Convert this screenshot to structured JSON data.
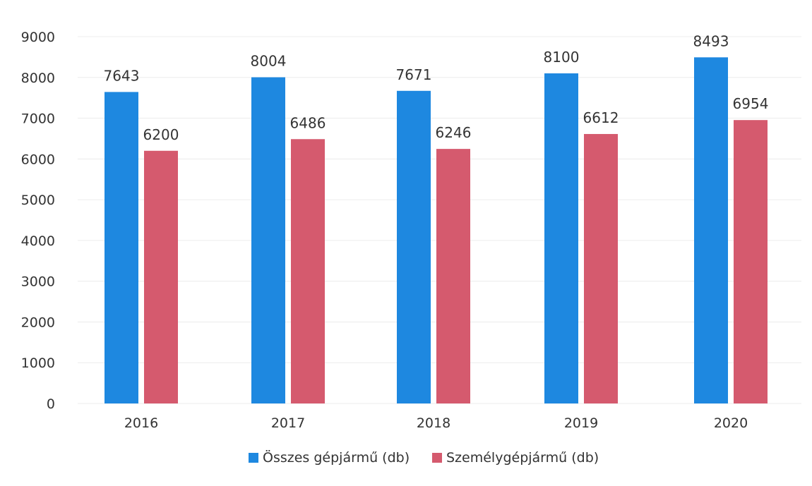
{
  "chart_data": {
    "type": "bar",
    "categories": [
      "2016",
      "2017",
      "2018",
      "2019",
      "2020"
    ],
    "series": [
      {
        "name": "Összes gépjármű (db)",
        "color": "#1e88e0",
        "values": [
          7643,
          8004,
          7671,
          8100,
          8493
        ]
      },
      {
        "name": "Személygépjármű (db)",
        "color": "#d55a6e",
        "values": [
          6200,
          6486,
          6246,
          6612,
          6954
        ]
      }
    ],
    "y_ticks": [
      "0",
      "1000",
      "2000",
      "3000",
      "4000",
      "5000",
      "6000",
      "7000",
      "8000",
      "9000"
    ],
    "ylim": [
      0,
      9000
    ],
    "grid": true,
    "legend_position": "bottom"
  }
}
